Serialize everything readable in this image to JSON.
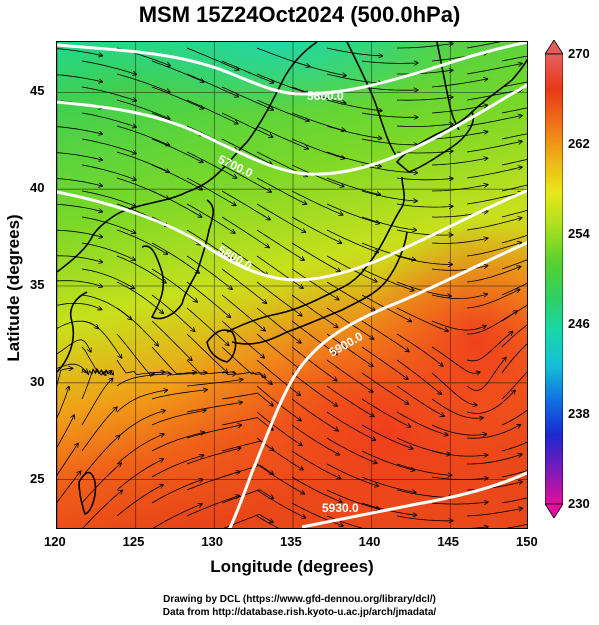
{
  "title": "MSM 15Z24Oct2024 (500.0hPa)",
  "x_axis": {
    "label": "Longitude (degrees)",
    "ticks": [
      "120",
      "125",
      "130",
      "135",
      "140",
      "145",
      "150"
    ],
    "range": [
      120,
      150
    ]
  },
  "y_axis": {
    "label": "Latitude  (degrees)",
    "ticks": [
      "45",
      "40",
      "35",
      "30",
      "25"
    ],
    "range": [
      22.4,
      47.6
    ]
  },
  "colorbar": {
    "ticks": [
      "270",
      "262",
      "254",
      "246",
      "238",
      "230"
    ],
    "range": [
      230,
      270
    ],
    "colors": [
      "#e0109a",
      "#7a1ab8",
      "#1a2ad0",
      "#1070e0",
      "#14c0d8",
      "#18d8a8",
      "#30d060",
      "#58d030",
      "#a8e020",
      "#e8e818",
      "#f0b018",
      "#f07018",
      "#e83818",
      "#e86060"
    ]
  },
  "contours": [
    {
      "label": "5600.0"
    },
    {
      "label": "5700.0"
    },
    {
      "label": "5800.0"
    },
    {
      "label": "5900.0"
    },
    {
      "label": "5930.0"
    }
  ],
  "credits": {
    "line1": "Drawing by DCL (https://www.gfd-dennou.org/library/dcl/)",
    "line2": "Data from http://database.rish.kyoto-u.ac.jp/arch/jmadata/"
  }
}
